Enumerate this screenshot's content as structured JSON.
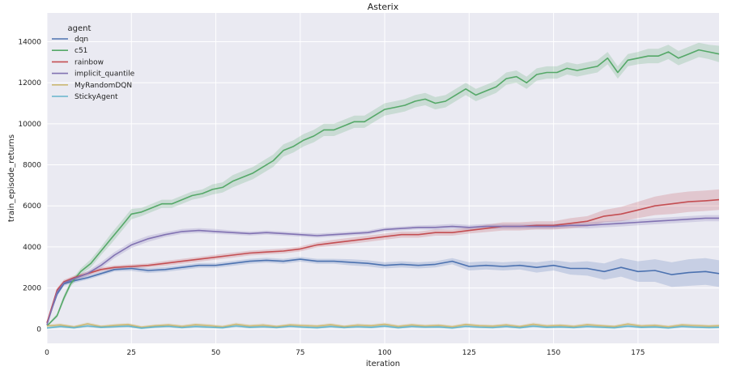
{
  "chart_data": {
    "type": "line",
    "title": "Asterix",
    "xlabel": "iteration",
    "ylabel": "train_episode_returns",
    "xlim": [
      0,
      199
    ],
    "ylim": [
      -700,
      15400
    ],
    "xticks": [
      0,
      25,
      50,
      75,
      100,
      125,
      150,
      175
    ],
    "xtick_labels": [
      "0",
      "25",
      "50",
      "75",
      "100",
      "125",
      "150",
      "175"
    ],
    "yticks": [
      0,
      2000,
      4000,
      6000,
      8000,
      10000,
      12000,
      14000
    ],
    "ytick_labels": [
      "0",
      "2000",
      "4000",
      "6000",
      "8000",
      "10000",
      "12000",
      "14000"
    ],
    "grid": true,
    "legend": {
      "title": "agent",
      "placement": "upper left"
    },
    "series": [
      {
        "name": "dqn",
        "color": "#4c72b0",
        "x": [
          0,
          3,
          5,
          8,
          12,
          16,
          20,
          25,
          30,
          35,
          40,
          45,
          50,
          55,
          60,
          65,
          70,
          75,
          80,
          85,
          90,
          95,
          100,
          105,
          110,
          115,
          120,
          125,
          130,
          135,
          140,
          145,
          150,
          155,
          160,
          165,
          170,
          175,
          180,
          185,
          190,
          195,
          199
        ],
        "y": [
          300,
          1700,
          2200,
          2350,
          2500,
          2700,
          2900,
          2950,
          2850,
          2900,
          3000,
          3100,
          3100,
          3200,
          3300,
          3350,
          3300,
          3400,
          3300,
          3300,
          3250,
          3200,
          3100,
          3150,
          3100,
          3150,
          3300,
          3050,
          3100,
          3050,
          3100,
          3000,
          3100,
          2950,
          2950,
          2800,
          3000,
          2800,
          2850,
          2650,
          2750,
          2800,
          2700
        ],
        "band": [
          50,
          100,
          100,
          100,
          100,
          100,
          100,
          120,
          120,
          120,
          120,
          120,
          120,
          120,
          120,
          120,
          120,
          120,
          120,
          120,
          150,
          150,
          150,
          150,
          150,
          150,
          150,
          200,
          200,
          200,
          200,
          250,
          250,
          300,
          350,
          400,
          450,
          500,
          550,
          600,
          650,
          650,
          650
        ]
      },
      {
        "name": "c51",
        "color": "#55a868",
        "x": [
          0,
          3,
          5,
          7,
          10,
          13,
          16,
          19,
          22,
          25,
          28,
          31,
          34,
          37,
          40,
          43,
          46,
          49,
          52,
          55,
          58,
          61,
          64,
          67,
          70,
          73,
          76,
          79,
          82,
          85,
          88,
          91,
          94,
          97,
          100,
          103,
          106,
          109,
          112,
          115,
          118,
          121,
          124,
          127,
          130,
          133,
          136,
          139,
          142,
          145,
          148,
          151,
          154,
          157,
          160,
          163,
          166,
          169,
          172,
          175,
          178,
          181,
          184,
          187,
          190,
          193,
          196,
          199
        ],
        "y": [
          150,
          650,
          1500,
          2200,
          2800,
          3200,
          3800,
          4400,
          5000,
          5600,
          5700,
          5900,
          6100,
          6100,
          6300,
          6500,
          6600,
          6800,
          6900,
          7200,
          7400,
          7600,
          7900,
          8200,
          8700,
          8900,
          9200,
          9400,
          9700,
          9700,
          9900,
          10100,
          10100,
          10400,
          10700,
          10800,
          10900,
          11100,
          11200,
          11000,
          11100,
          11400,
          11700,
          11400,
          11600,
          11800,
          12200,
          12300,
          12000,
          12400,
          12500,
          12500,
          12700,
          12600,
          12700,
          12800,
          13200,
          12500,
          13100,
          13200,
          13300,
          13300,
          13500,
          13200,
          13400,
          13600,
          13500,
          13400
        ],
        "band": [
          50,
          100,
          150,
          150,
          150,
          200,
          200,
          250,
          250,
          250,
          200,
          200,
          200,
          200,
          200,
          200,
          200,
          250,
          250,
          300,
          300,
          300,
          300,
          300,
          300,
          300,
          300,
          300,
          300,
          300,
          300,
          300,
          300,
          300,
          300,
          300,
          300,
          300,
          300,
          300,
          300,
          300,
          300,
          300,
          300,
          300,
          300,
          300,
          300,
          300,
          300,
          300,
          300,
          300,
          300,
          300,
          300,
          300,
          300,
          300,
          350,
          350,
          350,
          350,
          350,
          350,
          350,
          400
        ]
      },
      {
        "name": "rainbow",
        "color": "#c44e52",
        "x": [
          0,
          3,
          5,
          8,
          12,
          16,
          20,
          25,
          30,
          35,
          40,
          45,
          50,
          55,
          60,
          65,
          70,
          75,
          80,
          85,
          90,
          95,
          100,
          105,
          110,
          115,
          120,
          125,
          130,
          135,
          140,
          145,
          150,
          155,
          160,
          165,
          170,
          175,
          180,
          185,
          190,
          195,
          199
        ],
        "y": [
          300,
          1900,
          2300,
          2500,
          2700,
          2900,
          3000,
          3050,
          3100,
          3200,
          3300,
          3400,
          3500,
          3600,
          3700,
          3750,
          3800,
          3900,
          4100,
          4200,
          4300,
          4400,
          4500,
          4600,
          4600,
          4700,
          4700,
          4800,
          4900,
          5000,
          5000,
          5050,
          5050,
          5150,
          5250,
          5500,
          5600,
          5800,
          6000,
          6100,
          6200,
          6250,
          6300
        ],
        "band": [
          50,
          100,
          100,
          100,
          100,
          100,
          100,
          100,
          100,
          120,
          120,
          120,
          120,
          120,
          120,
          120,
          120,
          120,
          120,
          150,
          150,
          150,
          150,
          150,
          150,
          150,
          150,
          150,
          180,
          200,
          200,
          200,
          200,
          250,
          250,
          300,
          350,
          400,
          450,
          500,
          500,
          500,
          500
        ]
      },
      {
        "name": "implicit_quantile",
        "color": "#8172b2",
        "x": [
          0,
          3,
          5,
          8,
          12,
          16,
          20,
          25,
          30,
          35,
          40,
          45,
          50,
          55,
          60,
          65,
          70,
          75,
          80,
          85,
          90,
          95,
          100,
          105,
          110,
          115,
          120,
          125,
          130,
          135,
          140,
          145,
          150,
          155,
          160,
          165,
          170,
          175,
          180,
          185,
          190,
          195,
          199
        ],
        "y": [
          200,
          1800,
          2250,
          2450,
          2700,
          3100,
          3600,
          4100,
          4400,
          4600,
          4750,
          4800,
          4750,
          4700,
          4650,
          4700,
          4650,
          4600,
          4550,
          4600,
          4650,
          4700,
          4850,
          4900,
          4950,
          4950,
          5000,
          4950,
          5000,
          5000,
          5000,
          5000,
          5000,
          5050,
          5050,
          5100,
          5150,
          5200,
          5250,
          5300,
          5350,
          5400,
          5400
        ],
        "band": [
          50,
          100,
          100,
          100,
          120,
          150,
          150,
          150,
          150,
          120,
          120,
          120,
          120,
          100,
          100,
          100,
          100,
          100,
          100,
          100,
          100,
          100,
          100,
          100,
          100,
          120,
          120,
          120,
          120,
          120,
          120,
          120,
          120,
          120,
          150,
          150,
          150,
          150,
          150,
          150,
          150,
          150,
          150
        ]
      },
      {
        "name": "MyRandomDQN",
        "color": "#ccb974",
        "x": [
          0,
          4,
          8,
          12,
          16,
          20,
          24,
          28,
          32,
          36,
          40,
          44,
          48,
          52,
          56,
          60,
          64,
          68,
          72,
          76,
          80,
          84,
          88,
          92,
          96,
          100,
          104,
          108,
          112,
          116,
          120,
          124,
          128,
          132,
          136,
          140,
          144,
          148,
          152,
          156,
          160,
          164,
          168,
          172,
          176,
          180,
          184,
          188,
          192,
          196,
          199
        ],
        "y": [
          150,
          200,
          100,
          250,
          120,
          180,
          220,
          90,
          160,
          200,
          130,
          210,
          170,
          110,
          230,
          150,
          190,
          120,
          200,
          170,
          140,
          210,
          120,
          190,
          160,
          230,
          130,
          200,
          150,
          180,
          110,
          220,
          160,
          140,
          200,
          120,
          230,
          150,
          180,
          130,
          210,
          160,
          120,
          240,
          150,
          180,
          110,
          200,
          170,
          140,
          160
        ],
        "band": [
          80,
          80,
          80,
          80,
          80,
          80,
          80,
          80,
          80,
          80,
          80,
          80,
          80,
          80,
          80,
          80,
          80,
          80,
          80,
          80,
          80,
          80,
          80,
          80,
          80,
          80,
          80,
          80,
          80,
          80,
          80,
          80,
          80,
          80,
          80,
          80,
          80,
          80,
          80,
          80,
          80,
          80,
          80,
          80,
          80,
          80,
          80,
          80,
          80,
          80,
          80
        ]
      },
      {
        "name": "StickyAgent",
        "color": "#64b5cd",
        "x": [
          0,
          4,
          8,
          12,
          16,
          20,
          24,
          28,
          32,
          36,
          40,
          44,
          48,
          52,
          56,
          60,
          64,
          68,
          72,
          76,
          80,
          84,
          88,
          92,
          96,
          100,
          104,
          108,
          112,
          116,
          120,
          124,
          128,
          132,
          136,
          140,
          144,
          148,
          152,
          156,
          160,
          164,
          168,
          172,
          176,
          180,
          184,
          188,
          192,
          196,
          199
        ],
        "y": [
          50,
          120,
          60,
          150,
          80,
          110,
          140,
          40,
          100,
          130,
          70,
          120,
          90,
          60,
          150,
          80,
          110,
          70,
          130,
          90,
          60,
          120,
          70,
          110,
          80,
          140,
          60,
          120,
          90,
          100,
          50,
          130,
          90,
          70,
          120,
          60,
          140,
          80,
          100,
          70,
          120,
          90,
          60,
          140,
          80,
          100,
          50,
          120,
          90,
          70,
          80
        ],
        "band": [
          60,
          60,
          60,
          60,
          60,
          60,
          60,
          60,
          60,
          60,
          60,
          60,
          60,
          60,
          60,
          60,
          60,
          60,
          60,
          60,
          60,
          60,
          60,
          60,
          60,
          60,
          60,
          60,
          60,
          60,
          60,
          60,
          60,
          60,
          60,
          60,
          60,
          60,
          60,
          60,
          60,
          60,
          60,
          60,
          60,
          60,
          60,
          60,
          60,
          60,
          60
        ]
      }
    ]
  }
}
